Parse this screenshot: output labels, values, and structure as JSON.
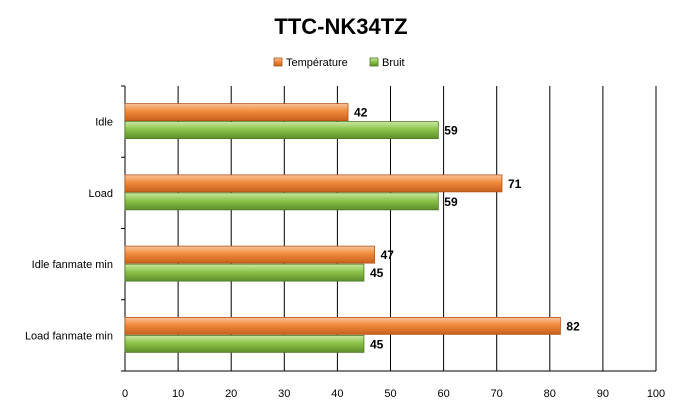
{
  "chart_data": {
    "type": "bar",
    "orientation": "horizontal",
    "title": "TTC-NK34TZ",
    "categories": [
      "Idle",
      "Load",
      "Idle fanmate  min",
      "Load fanmate  min"
    ],
    "series": [
      {
        "name": "Température",
        "values": [
          42,
          71,
          47,
          82
        ],
        "color": "#f08030"
      },
      {
        "name": "Bruit",
        "values": [
          59,
          59,
          45,
          45
        ],
        "color": "#88c040"
      }
    ],
    "xlim": [
      0,
      100
    ],
    "ticks": [
      0,
      10,
      20,
      30,
      40,
      50,
      60,
      70,
      80,
      90,
      100
    ],
    "grid": true,
    "legend_position": "top"
  }
}
